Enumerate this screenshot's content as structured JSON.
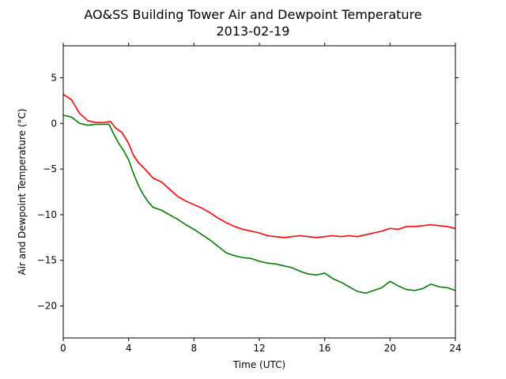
{
  "chart_data": {
    "type": "line",
    "title": "AO&SS Building Tower Air and Dewpoint Temperature",
    "subtitle": "2013-02-19",
    "xlabel": "Time (UTC)",
    "ylabel": "Air and Dewpoint Temperature (°C)",
    "xlim": [
      0,
      24
    ],
    "ylim": [
      -23.5,
      8.5
    ],
    "xticks": [
      0,
      4,
      8,
      12,
      16,
      20,
      24
    ],
    "yticks": [
      5,
      0,
      -5,
      -10,
      -15,
      -20
    ],
    "ytick_labels": [
      "5",
      "0",
      "−5",
      "−10",
      "−15",
      "−20"
    ],
    "grid": false,
    "series": [
      {
        "color": "#ff0000",
        "x": [
          0,
          0.5,
          1,
          1.5,
          2,
          2.5,
          2.9,
          3.2,
          3.6,
          4,
          4.3,
          4.6,
          5,
          5.5,
          6,
          6.5,
          7,
          7.5,
          8,
          8.5,
          9,
          9.5,
          10,
          10.5,
          11,
          11.5,
          12,
          12.5,
          13,
          13.5,
          14,
          14.5,
          15,
          15.5,
          16,
          16.5,
          17,
          17.5,
          18,
          18.5,
          19,
          19.5,
          20,
          20.5,
          21,
          21.5,
          22,
          22.5,
          23,
          23.5,
          24
        ],
        "y": [
          3.2,
          2.6,
          1.1,
          0.3,
          0.1,
          0.1,
          0.2,
          -0.5,
          -1.0,
          -2.2,
          -3.5,
          -4.3,
          -5.0,
          -6.0,
          -6.4,
          -7.2,
          -8.0,
          -8.5,
          -8.9,
          -9.3,
          -9.8,
          -10.4,
          -10.9,
          -11.3,
          -11.6,
          -11.8,
          -12.0,
          -12.3,
          -12.4,
          -12.5,
          -12.4,
          -12.3,
          -12.4,
          -12.5,
          -12.4,
          -12.3,
          -12.4,
          -12.3,
          -12.4,
          -12.2,
          -12.0,
          -11.8,
          -11.5,
          -11.6,
          -11.3,
          -11.3,
          -11.2,
          -11.1,
          -11.2,
          -11.3,
          -11.5
        ]
      },
      {
        "color": "#008000",
        "x": [
          0,
          0.5,
          1,
          1.5,
          2,
          2.5,
          2.8,
          3.1,
          3.4,
          3.7,
          4,
          4.3,
          4.6,
          4.9,
          5.2,
          5.5,
          6,
          6.5,
          7,
          7.5,
          8,
          8.5,
          9,
          9.5,
          10,
          10.5,
          11,
          11.5,
          12,
          12.5,
          13,
          13.5,
          14,
          14.5,
          15,
          15.5,
          16,
          16.5,
          17,
          17.5,
          18,
          18.5,
          19,
          19.5,
          20,
          20.5,
          21,
          21.5,
          22,
          22.5,
          23,
          23.5,
          24
        ],
        "y": [
          0.9,
          0.7,
          0.0,
          -0.2,
          -0.1,
          -0.1,
          -0.1,
          -1.2,
          -2.2,
          -3.0,
          -4.0,
          -5.5,
          -6.8,
          -7.8,
          -8.6,
          -9.2,
          -9.5,
          -10.0,
          -10.5,
          -11.1,
          -11.6,
          -12.2,
          -12.8,
          -13.5,
          -14.2,
          -14.5,
          -14.7,
          -14.8,
          -15.1,
          -15.3,
          -15.4,
          -15.6,
          -15.8,
          -16.2,
          -16.5,
          -16.6,
          -16.4,
          -17.0,
          -17.4,
          -17.9,
          -18.4,
          -18.6,
          -18.3,
          -18.0,
          -17.3,
          -17.8,
          -18.2,
          -18.3,
          -18.1,
          -17.6,
          -17.9,
          -18.0,
          -18.3
        ]
      }
    ]
  }
}
